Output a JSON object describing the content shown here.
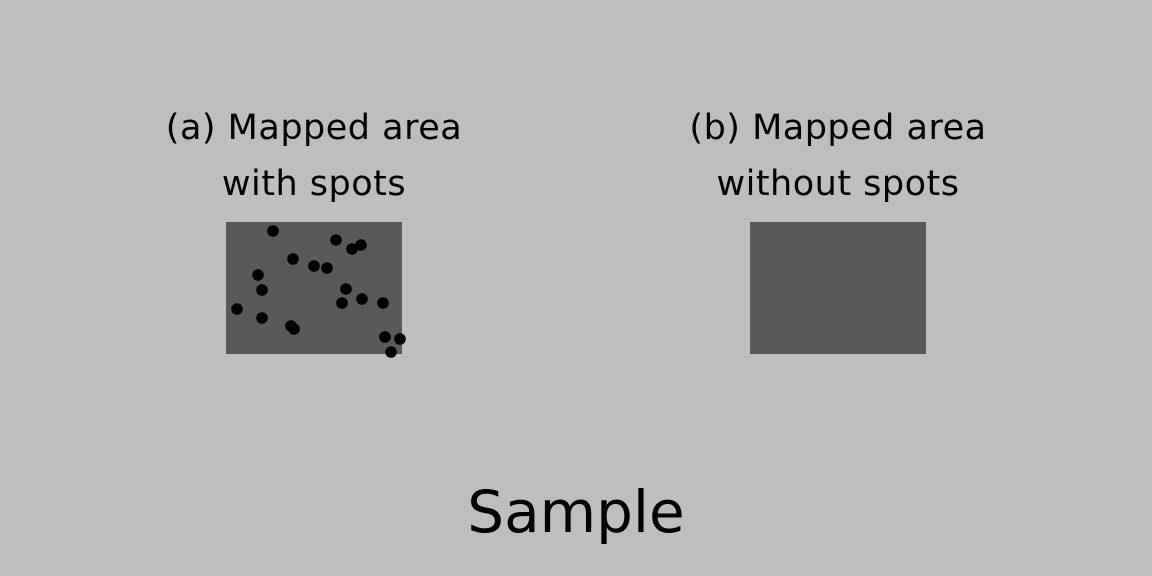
{
  "panels": {
    "a": {
      "title_line1": "(a) Mapped area",
      "title_line2": "with spots"
    },
    "b": {
      "title_line1": "(b) Mapped area",
      "title_line2": "without spots"
    }
  },
  "sample_label": "Sample",
  "colors": {
    "background": "#bebebe",
    "mapped_area": "#595959",
    "spot": "#000000"
  }
}
